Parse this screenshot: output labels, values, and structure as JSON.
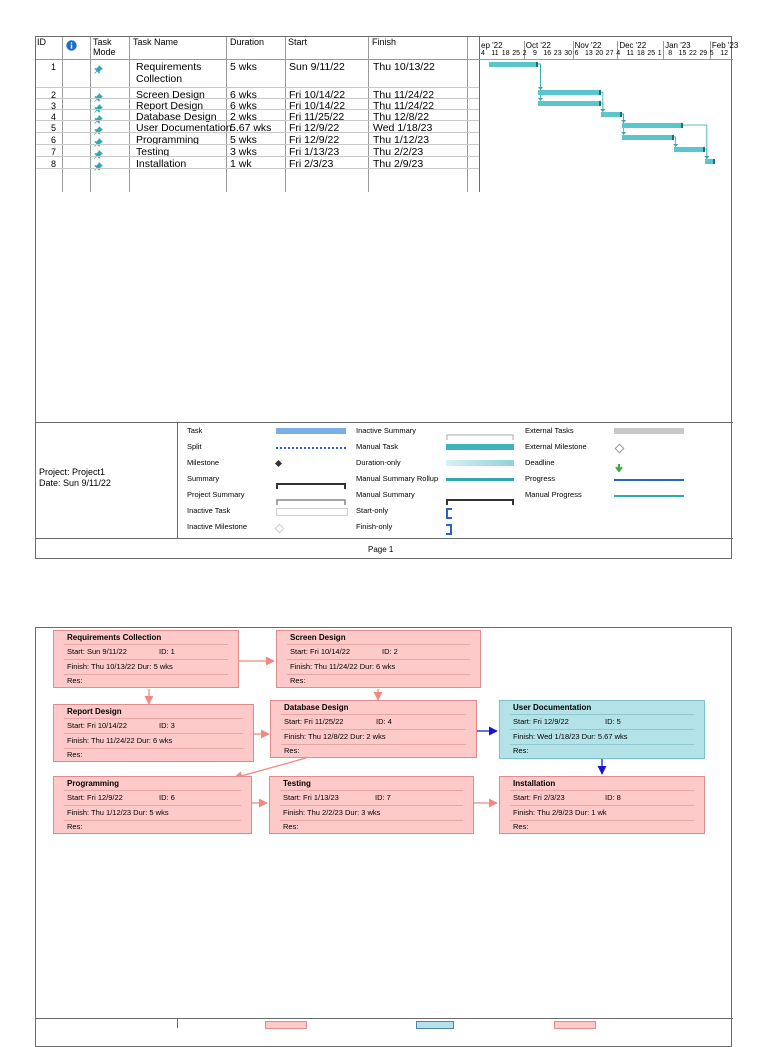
{
  "gantt": {
    "headers": {
      "id": "ID",
      "task_mode": "Task Mode",
      "task_name": "Task Name",
      "duration": "Duration",
      "start": "Start",
      "finish": "Finish"
    },
    "timescale_top": [
      "ep '22",
      "Oct '22",
      "Nov '22",
      "Dec '22",
      "Jan '23",
      "Feb '23"
    ],
    "timescale_bottom": [
      "4",
      "11",
      "18",
      "25",
      "2",
      "9",
      "16",
      "23",
      "30",
      "6",
      "13",
      "20",
      "27",
      "4",
      "11",
      "18",
      "25",
      "1",
      "8",
      "15",
      "22",
      "29",
      "5",
      "12"
    ],
    "rows": [
      {
        "id": "1",
        "name": "Requirements Collection",
        "duration": "5 wks",
        "start": "Sun 9/11/22",
        "finish": "Thu 10/13/22"
      },
      {
        "id": "2",
        "name": "Screen Design",
        "duration": "6 wks",
        "start": "Fri 10/14/22",
        "finish": "Thu 11/24/22"
      },
      {
        "id": "3",
        "name": "Report Design",
        "duration": "6 wks",
        "start": "Fri 10/14/22",
        "finish": "Thu 11/24/22"
      },
      {
        "id": "4",
        "name": "Database Design",
        "duration": "2 wks",
        "start": "Fri 11/25/22",
        "finish": "Thu 12/8/22"
      },
      {
        "id": "5",
        "name": "User Documentation",
        "duration": "5.67 wks",
        "start": "Fri 12/9/22",
        "finish": "Wed 1/18/23"
      },
      {
        "id": "6",
        "name": "Programming",
        "duration": "5 wks",
        "start": "Fri 12/9/22",
        "finish": "Thu 1/12/23"
      },
      {
        "id": "7",
        "name": "Testing",
        "duration": "3 wks",
        "start": "Fri 1/13/23",
        "finish": "Thu 2/2/23"
      },
      {
        "id": "8",
        "name": "Installation",
        "duration": "1 wk",
        "start": "Fri 2/3/23",
        "finish": "Thu 2/9/23"
      }
    ],
    "project": "Project: Project1",
    "date": "Date: Sun 9/11/22",
    "legend": {
      "col1": [
        "Task",
        "Split",
        "Milestone",
        "Summary",
        "Project Summary",
        "Inactive Task",
        "Inactive Milestone"
      ],
      "col2": [
        "Inactive Summary",
        "Manual Task",
        "Duration-only",
        "Manual Summary Rollup",
        "Manual Summary",
        "Start-only",
        "Finish-only"
      ],
      "col3": [
        "External Tasks",
        "External Milestone",
        "Deadline",
        "Progress",
        "Manual Progress"
      ]
    },
    "page": "Page 1"
  },
  "network": {
    "nodes": [
      {
        "title": "Requirements Collection",
        "start": "Start:  Sun 9/11/22",
        "id": "ID:  1",
        "finish": "Finish:  Thu 10/13/22 Dur: 5 wks",
        "res": "Res:",
        "color": "#fdc9c9"
      },
      {
        "title": "Screen Design",
        "start": "Start:  Fri 10/14/22",
        "id": "ID:  2",
        "finish": "Finish: Thu 11/24/22 Dur: 6 wks",
        "res": "Res:",
        "color": "#fdc9c9"
      },
      {
        "title": "Report Design",
        "start": "Start:  Fri 10/14/22",
        "id": "ID:  3",
        "finish": "Finish: Thu 11/24/22 Dur: 6 wks",
        "res": "Res:",
        "color": "#fdc9c9"
      },
      {
        "title": "Database Design",
        "start": "Start:  Fri 11/25/22",
        "id": "ID:  4",
        "finish": "Finish: Thu 12/8/22   Dur: 2 wks",
        "res": "Res:",
        "color": "#fdc9c9"
      },
      {
        "title": "User Documentation",
        "start": "Start:  Fri 12/9/22",
        "id": "ID:  5",
        "finish": "Finish: Wed 1/18/23  Dur: 5.67 wks",
        "res": "Res:",
        "color": "#b3e3e8"
      },
      {
        "title": "Programming",
        "start": "Start:  Fri 12/9/22",
        "id": "ID:  6",
        "finish": "Finish: Thu 1/12/23  Dur: 5 wks",
        "res": "Res:",
        "color": "#fdc9c9"
      },
      {
        "title": "Testing",
        "start": "Start:  Fri 1/13/23",
        "id": "ID:  7",
        "finish": "Finish: Thu 2/2/23     Dur: 3 wks",
        "res": "Res:",
        "color": "#fdc9c9"
      },
      {
        "title": "Installation",
        "start": "Start:  Fri 2/3/23",
        "id": "ID:  8",
        "finish": "Finish: Thu 2/9/23   Dur: 1 wk",
        "res": "Res:",
        "color": "#fdc9c9"
      }
    ]
  },
  "colors": {
    "gantt_bar": "#5bc5cc",
    "critical_node": "#fdc9c9",
    "noncritical_node": "#b3e3e8",
    "critical_arrow": "#f08a80",
    "noncritical_arrow": "#1515d8"
  }
}
